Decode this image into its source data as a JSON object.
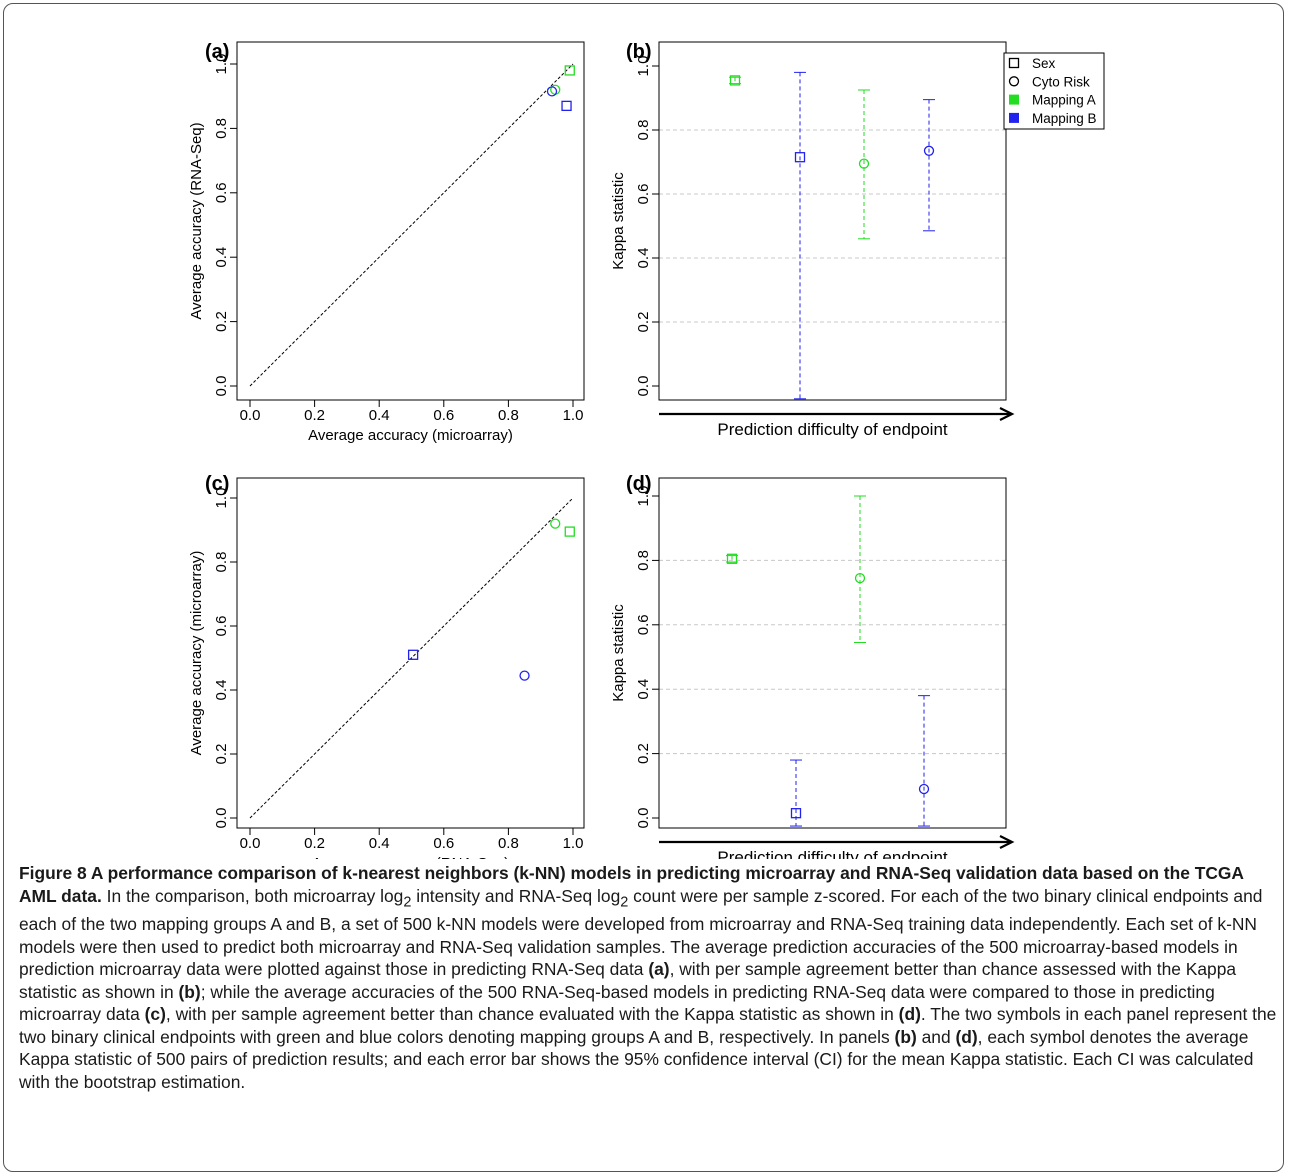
{
  "legend": {
    "entries": [
      {
        "label": "Sex",
        "marker": "square-open",
        "color": "#000000"
      },
      {
        "label": "Cyto Risk",
        "marker": "circle-open",
        "color": "#000000"
      },
      {
        "label": "Mapping A",
        "marker": "square-filled",
        "color": "#22dd22"
      },
      {
        "label": "Mapping B",
        "marker": "square-filled",
        "color": "#2222ee"
      }
    ]
  },
  "colors": {
    "mapping_a": "#22dd22",
    "mapping_b": "#2222ee"
  },
  "chart_data": [
    {
      "panel": "(a)",
      "type": "scatter",
      "xlabel": "Average accuracy (microarray)",
      "ylabel": "Average accuracy (RNA-Seq)",
      "xlim": [
        0,
        1
      ],
      "ylim": [
        0,
        1
      ],
      "xticks": [
        "0.0",
        "0.2",
        "0.4",
        "0.6",
        "0.8",
        "1.0"
      ],
      "yticks": [
        "0.0",
        "0.2",
        "0.4",
        "0.6",
        "0.8",
        "1.0"
      ],
      "diagonal": true,
      "points": [
        {
          "endpoint": "Sex",
          "mapping": "A",
          "x": 0.99,
          "y": 0.98
        },
        {
          "endpoint": "Cyto Risk",
          "mapping": "A",
          "x": 0.945,
          "y": 0.92
        },
        {
          "endpoint": "Sex",
          "mapping": "B",
          "x": 0.98,
          "y": 0.87
        },
        {
          "endpoint": "Cyto Risk",
          "mapping": "B",
          "x": 0.935,
          "y": 0.915
        }
      ]
    },
    {
      "panel": "(b)",
      "type": "errorbar",
      "xlabel": "Prediction difficulty of endpoint",
      "ylabel": "Kappa statistic",
      "ylim": [
        0,
        1
      ],
      "yticks": [
        "0.0",
        "0.2",
        "0.4",
        "0.6",
        "0.8",
        "1.0"
      ],
      "grid": true,
      "points": [
        {
          "endpoint": "Sex",
          "mapping": "A",
          "position": 1,
          "value": 0.955,
          "ci": [
            0.945,
            0.965
          ]
        },
        {
          "endpoint": "Sex",
          "mapping": "B",
          "position": 2,
          "value": 0.715,
          "ci": [
            -0.04,
            0.98
          ]
        },
        {
          "endpoint": "Cyto Risk",
          "mapping": "A",
          "position": 3,
          "value": 0.695,
          "ci": [
            0.46,
            0.925
          ]
        },
        {
          "endpoint": "Cyto Risk",
          "mapping": "B",
          "position": 4,
          "value": 0.735,
          "ci": [
            0.485,
            0.895
          ]
        }
      ]
    },
    {
      "panel": "(c)",
      "type": "scatter",
      "xlabel": "Average accuracy (RNA-Seq)",
      "ylabel": "Average accuracy (microarray)",
      "xlim": [
        0,
        1
      ],
      "ylim": [
        0,
        1
      ],
      "xticks": [
        "0.0",
        "0.2",
        "0.4",
        "0.6",
        "0.8",
        "1.0"
      ],
      "yticks": [
        "0.0",
        "0.2",
        "0.4",
        "0.6",
        "0.8",
        "1.0"
      ],
      "diagonal": true,
      "points": [
        {
          "endpoint": "Sex",
          "mapping": "A",
          "x": 0.99,
          "y": 0.895
        },
        {
          "endpoint": "Cyto Risk",
          "mapping": "A",
          "x": 0.945,
          "y": 0.92
        },
        {
          "endpoint": "Sex",
          "mapping": "B",
          "x": 0.505,
          "y": 0.51
        },
        {
          "endpoint": "Cyto Risk",
          "mapping": "B",
          "x": 0.85,
          "y": 0.445
        }
      ]
    },
    {
      "panel": "(d)",
      "type": "errorbar",
      "xlabel": "Prediction difficulty of endpoint",
      "ylabel": "Kappa statistic",
      "ylim": [
        0,
        1
      ],
      "yticks": [
        "0.0",
        "0.2",
        "0.4",
        "0.6",
        "0.8",
        "1.0"
      ],
      "grid": true,
      "points": [
        {
          "endpoint": "Sex",
          "mapping": "A",
          "position": 1,
          "value": 0.805,
          "ci": [
            0.795,
            0.815
          ]
        },
        {
          "endpoint": "Sex",
          "mapping": "B",
          "position": 2,
          "value": 0.015,
          "ci": [
            -0.025,
            0.18
          ]
        },
        {
          "endpoint": "Cyto Risk",
          "mapping": "A",
          "position": 3,
          "value": 0.745,
          "ci": [
            0.545,
            1.0
          ]
        },
        {
          "endpoint": "Cyto Risk",
          "mapping": "B",
          "position": 4,
          "value": 0.09,
          "ci": [
            -0.025,
            0.38
          ]
        }
      ]
    }
  ],
  "caption": {
    "title": "Figure 8 A performance comparison of k-nearest neighbors (k-NN) models in predicting microarray and RNA-Seq validation data based on the TCGA AML data.",
    "s1": " In the comparison, both microarray log",
    "sub1": "2",
    "s2": " intensity and RNA-Seq log",
    "sub2": "2",
    "s3": " count were per sample z-scored. For each of the two binary clinical endpoints and each of the two mapping groups A and B, a set of 500 k-NN models were developed from microarray and RNA-Seq training data independently. Each set of k-NN models were then used to predict both microarray and RNA-Seq validation samples. The average prediction accuracies of the 500 microarray-based models in prediction microarray data were plotted against those in predicting RNA-Seq data ",
    "ra": "(a)",
    "s4": ", with per sample agreement better than chance assessed with the Kappa statistic as shown in ",
    "rb": "(b)",
    "s5": "; while the average accuracies of the 500 RNA-Seq-based models in predicting RNA-Seq data were compared to those in predicting microarray data ",
    "rc": "(c)",
    "s6": ", with per sample agreement better than chance evaluated with the Kappa statistic as shown in ",
    "rd": "(d)",
    "s7": ". The two symbols in each panel represent the two binary clinical endpoints with green and blue colors denoting mapping groups A and B, respectively. In panels ",
    "rb2": "(b)",
    "s8": " and ",
    "rd2": "(d)",
    "s9": ", each symbol denotes the average Kappa statistic of 500 pairs of prediction results; and each error bar shows the 95% confidence interval (CI) for the mean Kappa statistic. Each CI was calculated with the bootstrap estimation."
  }
}
